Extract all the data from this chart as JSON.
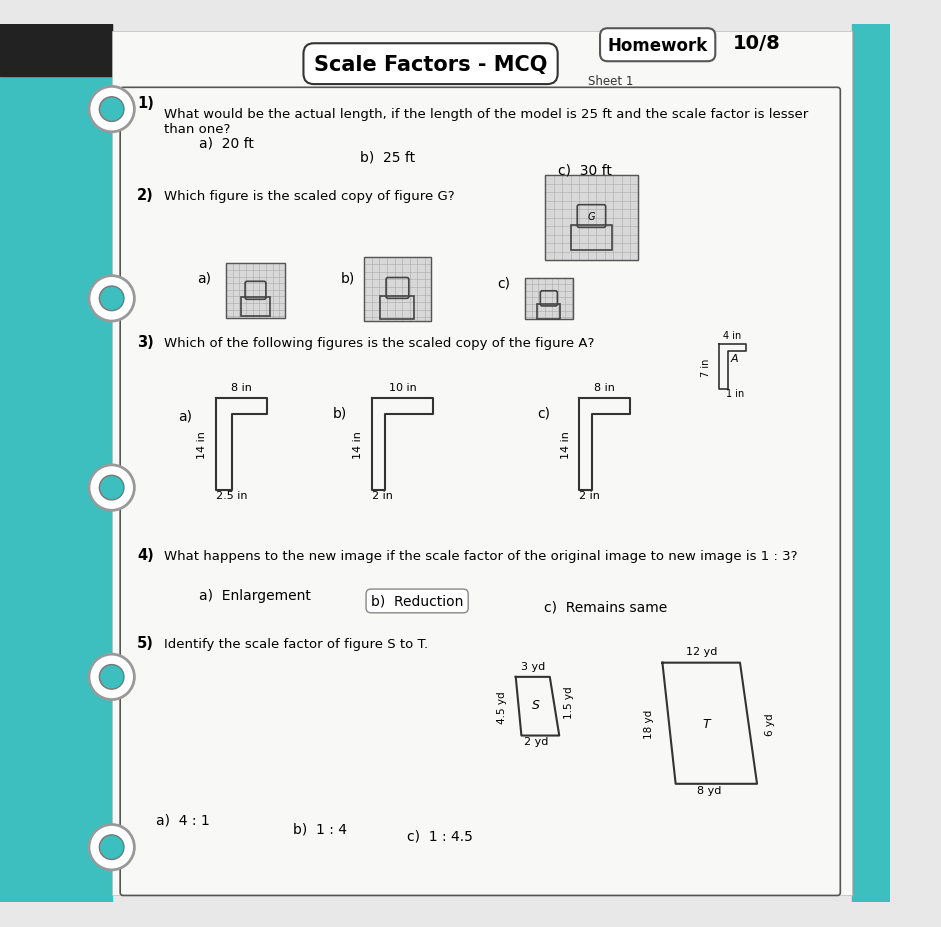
{
  "title": "Scale Factors - MCQ",
  "subtitle": "Sheet 1",
  "homework_label": "Homework",
  "homework_date": "10/8",
  "bg_color": "#e8e8e8",
  "paper_color": "#f8f8f6",
  "teal_color": "#3dbfbf",
  "dark_color": "#222222",
  "questions": [
    {
      "num": "1)",
      "text": "What would be the actual length, if the length of the model is 25 ft and the scale factor is lesser\nthan one?",
      "options": [
        "a)  20 ft",
        "b)  25 ft",
        "c)  30 ft"
      ]
    },
    {
      "num": "2)",
      "text": "Which figure is the scaled copy of figure G?",
      "options": [
        "a)",
        "b)",
        "c)"
      ]
    },
    {
      "num": "3)",
      "text": "Which of the following figures is the scaled copy of the figure A?",
      "options": [
        "a)",
        "b)",
        "c)"
      ]
    },
    {
      "num": "4)",
      "text": "What happens to the new image if the scale factor of the original image to new image is 1 : 3?",
      "options": [
        "a)  Enlargement",
        "b)  Reduction",
        "c)  Remains same"
      ]
    },
    {
      "num": "5)",
      "text": "Identify the scale factor of figure S to T.",
      "options": [
        "a)  4 : 1",
        "b)  1 : 4",
        "c)  1 : 4.5"
      ]
    }
  ]
}
